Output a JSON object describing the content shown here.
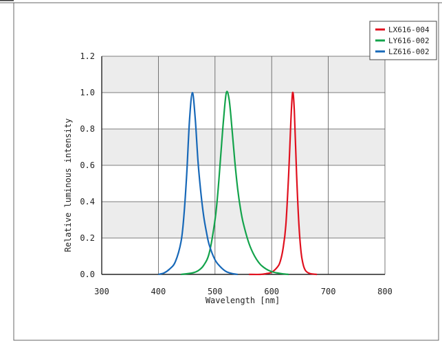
{
  "chart_data": {
    "type": "line",
    "xlabel": "Wavelength [nm]",
    "ylabel": "Relative luminous intensity",
    "xlim": [
      300,
      800
    ],
    "ylim": [
      0.0,
      1.2
    ],
    "xticks": [
      "300",
      "400",
      "500",
      "600",
      "700",
      "800"
    ],
    "yticks": [
      "0.0",
      "0.2",
      "0.4",
      "0.6",
      "0.8",
      "1.0",
      "1.2"
    ],
    "grid": true,
    "legend_position": "top-right",
    "series": [
      {
        "name": "LX616-004",
        "color": "#e0101e",
        "x": [
          560,
          580,
          590,
          600,
          610,
          615,
          620,
          625,
          630,
          634,
          637,
          640,
          644,
          648,
          652,
          656,
          660,
          665,
          670,
          680
        ],
        "y": [
          0.0,
          0.0,
          0.004,
          0.012,
          0.04,
          0.07,
          0.14,
          0.27,
          0.55,
          0.85,
          1.0,
          0.9,
          0.55,
          0.28,
          0.12,
          0.05,
          0.02,
          0.008,
          0.003,
          0.0
        ]
      },
      {
        "name": "LY616-002",
        "color": "#13a34b",
        "x": [
          440,
          460,
          470,
          480,
          490,
          500,
          505,
          510,
          515,
          520,
          525,
          530,
          535,
          540,
          545,
          550,
          560,
          570,
          580,
          590,
          600,
          610,
          620,
          630
        ],
        "y": [
          0.0,
          0.008,
          0.02,
          0.05,
          0.12,
          0.3,
          0.45,
          0.65,
          0.85,
          1.0,
          0.96,
          0.8,
          0.62,
          0.47,
          0.36,
          0.28,
          0.17,
          0.1,
          0.055,
          0.03,
          0.015,
          0.008,
          0.003,
          0.0
        ]
      },
      {
        "name": "LZ616-002",
        "color": "#1768b8",
        "x": [
          400,
          410,
          420,
          430,
          440,
          445,
          450,
          455,
          460,
          465,
          470,
          475,
          480,
          485,
          490,
          500,
          510,
          520,
          530,
          540
        ],
        "y": [
          0.0,
          0.008,
          0.03,
          0.07,
          0.18,
          0.32,
          0.55,
          0.85,
          1.0,
          0.86,
          0.62,
          0.45,
          0.32,
          0.23,
          0.16,
          0.08,
          0.04,
          0.015,
          0.005,
          0.0
        ]
      }
    ]
  }
}
